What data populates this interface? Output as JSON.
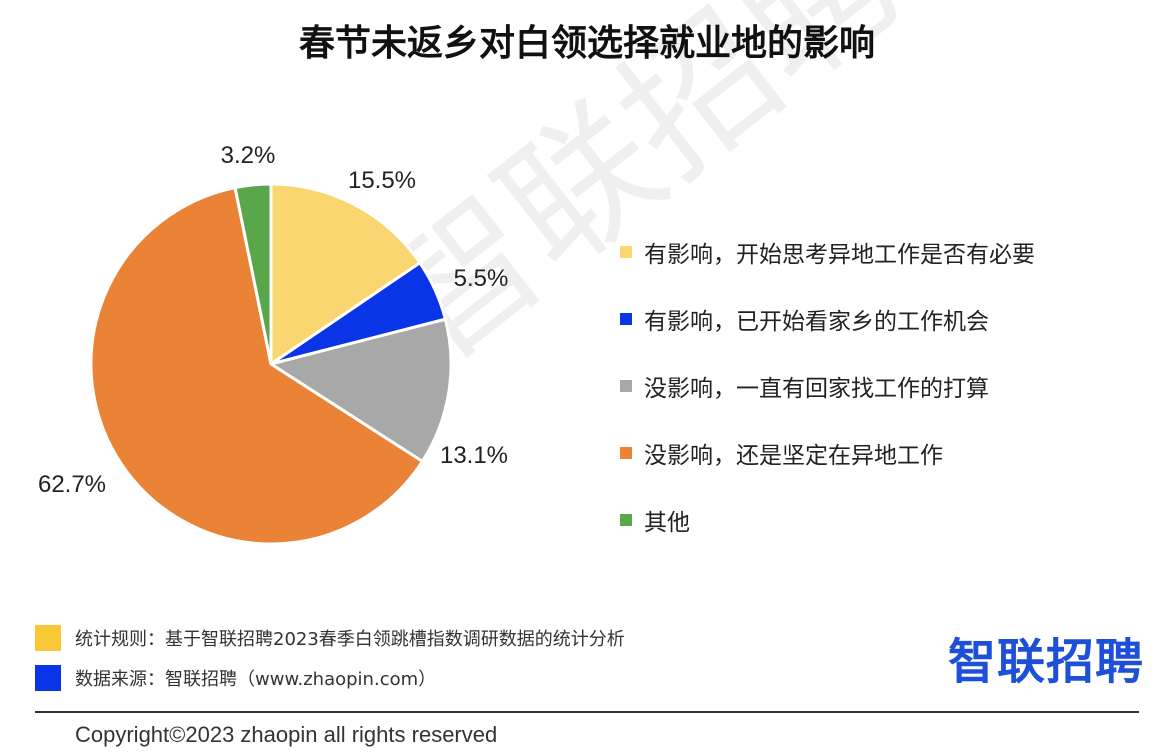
{
  "chart_data": {
    "type": "pie",
    "title": "春节未返乡对白领选择就业地的影响",
    "categories": [
      "有影响，开始思考异地工作是否有必要",
      "有影响，已开始看家乡的工作机会",
      "没影响，一直有回家找工作的打算",
      "没影响，还是坚定在异地工作",
      "其他"
    ],
    "values": [
      15.5,
      5.5,
      13.1,
      62.7,
      3.2
    ],
    "labels": [
      "15.5%",
      "5.5%",
      "13.1%",
      "62.7%",
      "3.2%"
    ],
    "colors": [
      "#f9d66f",
      "#0a35e6",
      "#a8a8a8",
      "#ea8336",
      "#5aa64a"
    ],
    "legend_position": "right",
    "start_angle": "12 o'clock",
    "direction": "clockwise"
  },
  "watermark": "智联招聘",
  "footer": {
    "notes": [
      {
        "text": "统计规则：基于智联招聘2023春季白领跳槽指数调研数据的统计分析",
        "color": "#f9c935"
      },
      {
        "text": "数据来源：智联招聘（www.zhaopin.com）",
        "color": "#0a35e6"
      }
    ],
    "logo": "智联招聘",
    "copyright": "Copyright©2023 zhaopin all rights reserved"
  }
}
